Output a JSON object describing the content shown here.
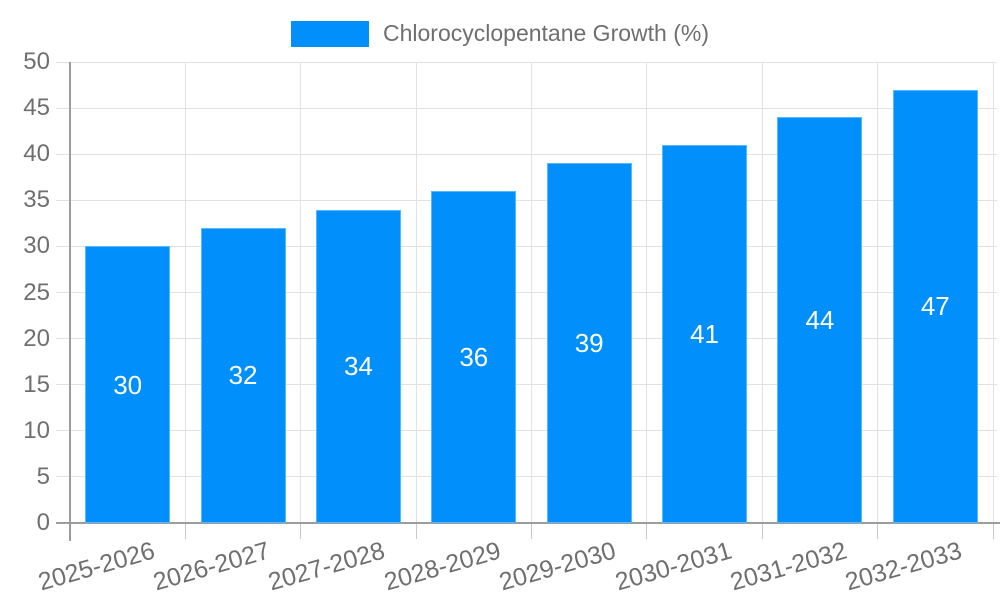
{
  "legend": {
    "label": "Chlorocyclopentane Growth (%)"
  },
  "chart_data": {
    "type": "bar",
    "title": "",
    "categories": [
      "2025-2026",
      "2026-2027",
      "2027-2028",
      "2028-2029",
      "2029-2030",
      "2030-2031",
      "2031-2032",
      "2032-2033"
    ],
    "series": [
      {
        "name": "Chlorocyclopentane Growth (%)",
        "values": [
          30,
          32,
          34,
          36,
          39,
          41,
          44,
          47
        ]
      }
    ],
    "value_labels": [
      "30",
      "32",
      "34",
      "36",
      "39",
      "41",
      "44",
      "47"
    ],
    "ylim": [
      0,
      50
    ],
    "yticks": [
      0,
      5,
      10,
      15,
      20,
      25,
      30,
      35,
      40,
      45,
      50
    ],
    "ytick_labels": [
      "0",
      "5",
      "10",
      "15",
      "20",
      "25",
      "30",
      "35",
      "40",
      "45",
      "50"
    ],
    "xlabel": "",
    "ylabel": "",
    "grid": "on",
    "legend_position": "top",
    "x_label_rotation_deg": -16,
    "colors": {
      "bar": "#008FFB",
      "value_label": "#ffffff",
      "axis_label": "#6f6f6f",
      "gridline": "#e2e2e2",
      "axis_line": "#9c9c9c",
      "tick": "#c9c9c9",
      "background": "#ffffff"
    }
  }
}
